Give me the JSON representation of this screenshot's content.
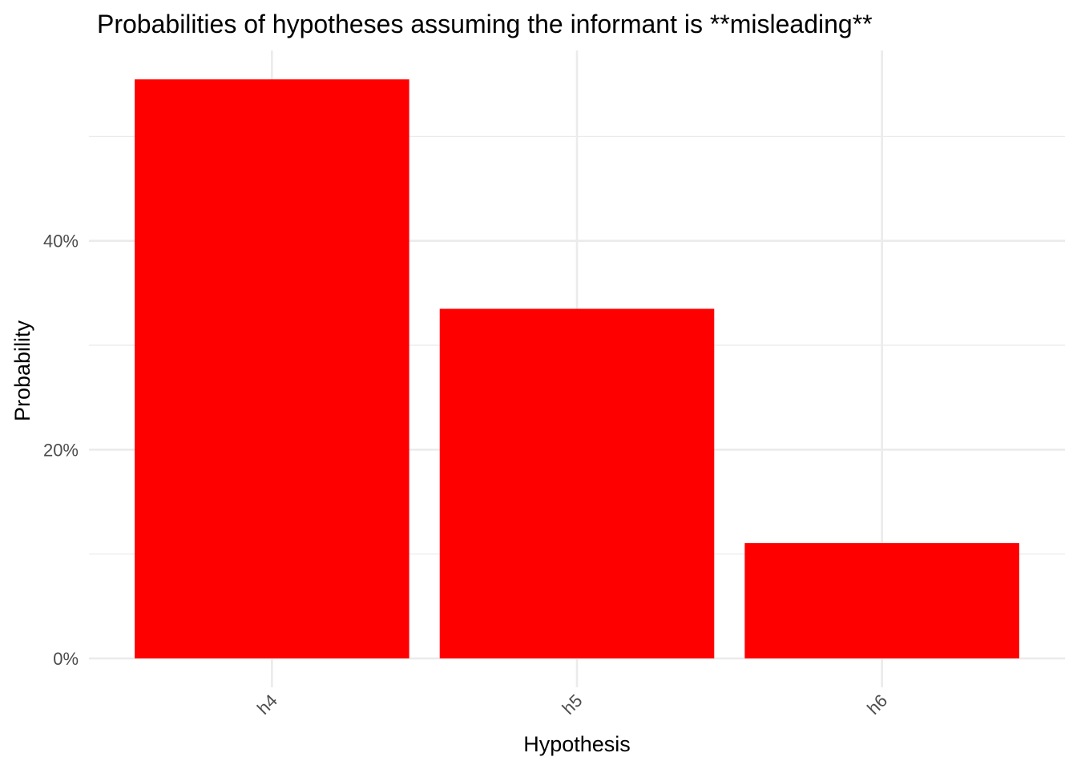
{
  "chart_data": {
    "type": "bar",
    "title": "Probabilities of hypotheses assuming the informant is **misleading**",
    "xlabel": "Hypothesis",
    "ylabel": "Probability",
    "categories": [
      "h4",
      "h5",
      "h6"
    ],
    "values": [
      0.5547,
      0.3349,
      0.1104
    ],
    "y_ticks": [
      0,
      0.2,
      0.4
    ],
    "y_tick_labels": [
      "0%",
      "20%",
      "40%"
    ],
    "ylim": [
      -0.0277,
      0.5824
    ],
    "grid": true,
    "legend": "none",
    "bar_color": "#FF0000"
  }
}
